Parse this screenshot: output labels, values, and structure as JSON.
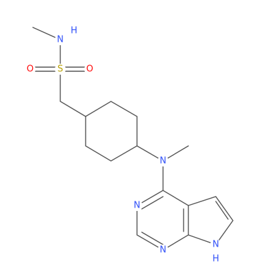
{
  "molecule": {
    "atoms": [
      {
        "label": "N"
      },
      {
        "label": "H"
      },
      {
        "label": "S"
      },
      {
        "label": "O"
      },
      {
        "label": "O"
      },
      {
        "label": "N"
      },
      {
        "label": "N"
      },
      {
        "label": "N"
      },
      {
        "label": "N"
      },
      {
        "label": "H"
      }
    ]
  }
}
